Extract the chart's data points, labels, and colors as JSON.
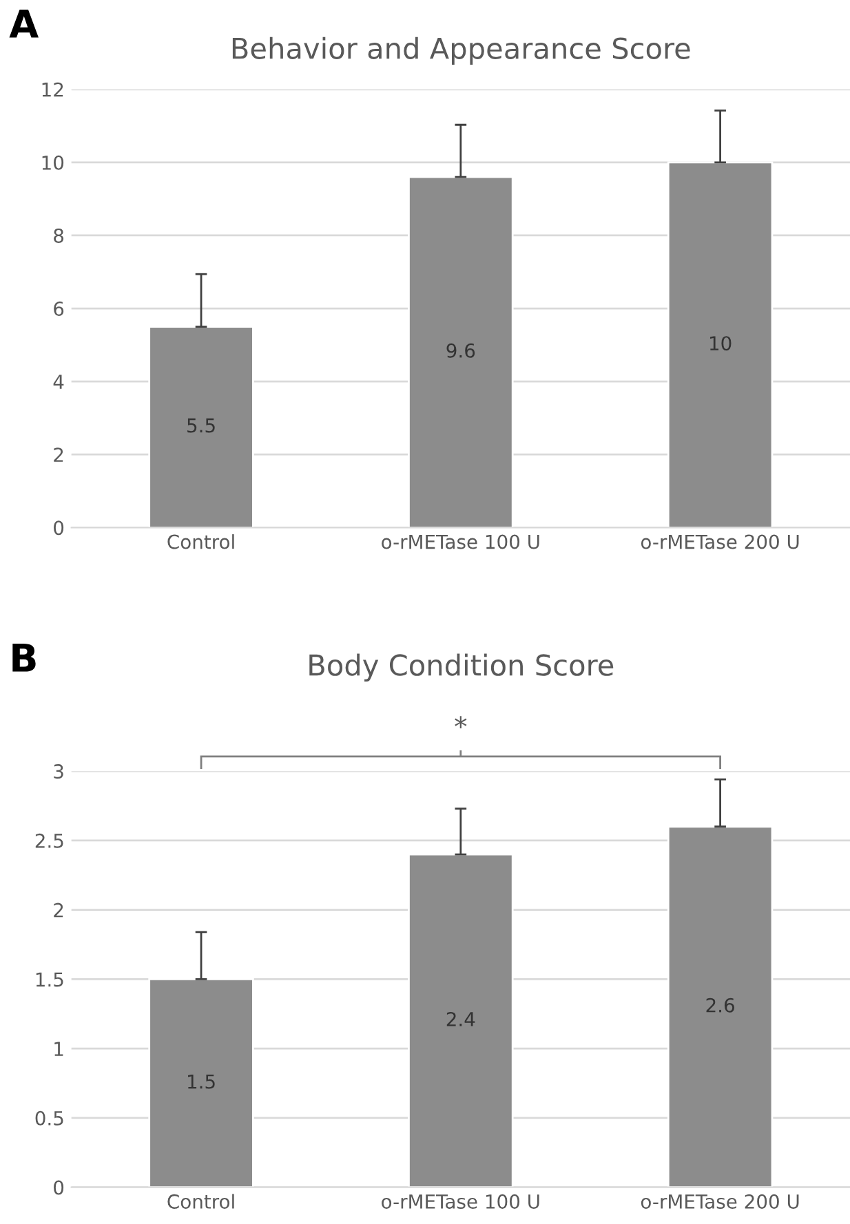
{
  "chart_data": [
    {
      "type": "bar",
      "title": "Behavior and Appearance Score",
      "annotations": [
        "A"
      ],
      "categories": [
        "Control",
        "o-rMETase 100 U",
        "o-rMETase 200 U"
      ],
      "values": [
        5.5,
        9.6,
        10
      ],
      "color": "#8c8c8c",
      "errors": [
        [
          5.5,
          6.94
        ],
        [
          9.6,
          11.03
        ],
        [
          10,
          11.42
        ]
      ],
      "ylim": [
        0,
        12
      ],
      "yticks": [
        0,
        2,
        4,
        6,
        8,
        10,
        12
      ],
      "grid": "y",
      "data_labels": true
    },
    {
      "type": "bar",
      "title": "Body Condition Score",
      "annotations": [
        "B",
        "*"
      ],
      "categories": [
        "Control",
        "o-rMETase 100 U",
        "o-rMETase 200 U"
      ],
      "values": [
        1.5,
        2.4,
        2.6
      ],
      "color": "#8c8c8c",
      "errors": [
        [
          1.5,
          1.84
        ],
        [
          2.4,
          2.73
        ],
        [
          2.6,
          2.94
        ]
      ],
      "ylim": [
        0,
        3
      ],
      "yticks": [
        0,
        0.5,
        1,
        1.5,
        2,
        2.5,
        3
      ],
      "grid": "y",
      "data_labels": true
    }
  ]
}
